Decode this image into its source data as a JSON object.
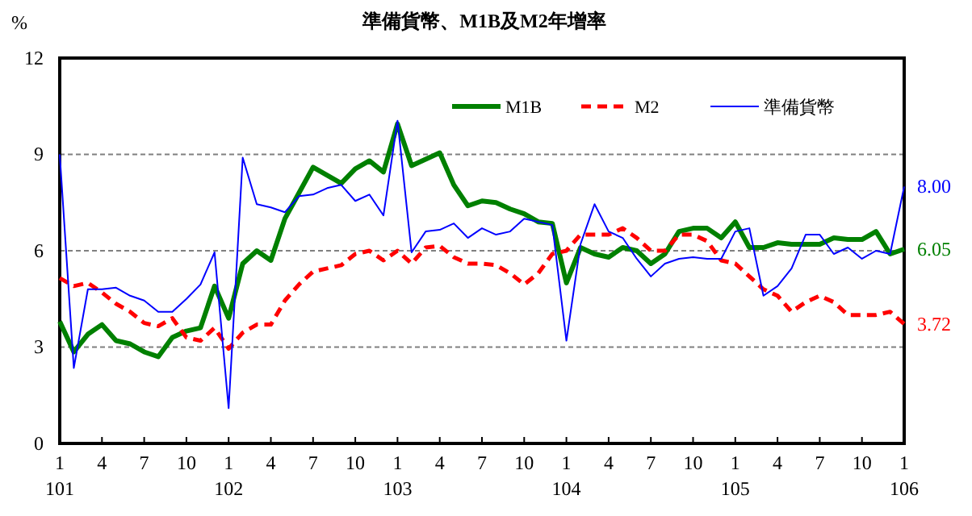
{
  "chart_data": {
    "type": "line",
    "title": "準備貨幣、M1B及M2年增率",
    "ylabel": "%",
    "categories": [
      "1\n101",
      null,
      null,
      "4",
      null,
      null,
      "7",
      null,
      null,
      "10",
      null,
      null,
      "1\n102",
      null,
      null,
      "4",
      null,
      null,
      "7",
      null,
      null,
      "10",
      null,
      null,
      "1\n103",
      null,
      null,
      "4",
      null,
      null,
      "7",
      null,
      null,
      "10",
      null,
      null,
      "1\n104",
      null,
      null,
      "4",
      null,
      null,
      "7",
      null,
      null,
      "10",
      null,
      null,
      "1\n105",
      null,
      null,
      "4",
      null,
      null,
      "7",
      null,
      null,
      "10",
      null,
      null,
      "1\n106"
    ],
    "ylim": [
      0,
      12
    ],
    "yticks": [
      0,
      3,
      6,
      9,
      12
    ],
    "grid": "y",
    "legend": "top right",
    "series": [
      {
        "name": "M1B",
        "color": "#008000",
        "line_style": "solid",
        "values": [
          3.8,
          2.85,
          3.4,
          3.7,
          3.2,
          3.1,
          2.85,
          2.7,
          3.3,
          3.5,
          3.6,
          4.9,
          3.9,
          5.6,
          6.0,
          5.7,
          7.0,
          7.8,
          8.6,
          8.35,
          8.1,
          8.55,
          8.8,
          8.45,
          9.95,
          8.65,
          8.85,
          9.05,
          8.05,
          7.4,
          7.55,
          7.5,
          7.3,
          7.15,
          6.9,
          6.85,
          5.0,
          6.1,
          5.9,
          5.8,
          6.1,
          6.0,
          5.6,
          5.9,
          6.6,
          6.7,
          6.7,
          6.4,
          6.9,
          6.1,
          6.1,
          6.25,
          6.2,
          6.2,
          6.2,
          6.4,
          6.35,
          6.35,
          6.6,
          5.9,
          6.05
        ],
        "value_labels": [
          null,
          null,
          null,
          null,
          null,
          null,
          null,
          null,
          null,
          null,
          null,
          null,
          null,
          null,
          null,
          null,
          null,
          null,
          null,
          null,
          null,
          null,
          null,
          null,
          null,
          null,
          null,
          null,
          null,
          null,
          null,
          null,
          null,
          null,
          null,
          null,
          null,
          null,
          null,
          null,
          null,
          null,
          null,
          null,
          null,
          null,
          null,
          null,
          null,
          null,
          null,
          null,
          null,
          null,
          null,
          null,
          null,
          null,
          null,
          null,
          "6.05"
        ]
      },
      {
        "name": "M2",
        "color": "#ff0000",
        "line_style": "dashed",
        "values": [
          5.15,
          4.9,
          5.0,
          4.7,
          4.35,
          4.1,
          3.75,
          3.65,
          3.9,
          3.3,
          3.2,
          3.6,
          2.95,
          3.45,
          3.7,
          3.7,
          4.45,
          4.95,
          5.35,
          5.45,
          5.55,
          5.9,
          6.0,
          5.7,
          6.0,
          5.6,
          6.1,
          6.15,
          5.8,
          5.6,
          5.6,
          5.55,
          5.3,
          4.95,
          5.3,
          5.9,
          6.0,
          6.5,
          6.5,
          6.5,
          6.7,
          6.4,
          6.0,
          6.0,
          6.5,
          6.5,
          6.3,
          5.7,
          5.6,
          5.2,
          4.8,
          4.6,
          4.1,
          4.4,
          4.6,
          4.4,
          4.0,
          4.0,
          4.0,
          4.1,
          3.72
        ],
        "value_labels": [
          null,
          null,
          null,
          null,
          null,
          null,
          null,
          null,
          null,
          null,
          null,
          null,
          null,
          null,
          null,
          null,
          null,
          null,
          null,
          null,
          null,
          null,
          null,
          null,
          null,
          null,
          null,
          null,
          null,
          null,
          null,
          null,
          null,
          null,
          null,
          null,
          null,
          null,
          null,
          null,
          null,
          null,
          null,
          null,
          null,
          null,
          null,
          null,
          null,
          null,
          null,
          null,
          null,
          null,
          null,
          null,
          null,
          null,
          null,
          null,
          "3.72"
        ]
      },
      {
        "name": "準備貨幣",
        "color": "#0000ff",
        "line_style": "solid",
        "values": [
          9.0,
          2.35,
          4.8,
          4.8,
          4.85,
          4.6,
          4.45,
          4.1,
          4.1,
          4.5,
          4.95,
          5.95,
          1.1,
          8.9,
          7.45,
          7.35,
          7.2,
          7.7,
          7.75,
          7.95,
          8.05,
          7.55,
          7.75,
          7.1,
          10.05,
          5.95,
          6.6,
          6.65,
          6.85,
          6.4,
          6.7,
          6.5,
          6.6,
          7.0,
          6.9,
          6.8,
          3.2,
          6.2,
          7.45,
          6.6,
          6.4,
          5.75,
          5.2,
          5.6,
          5.75,
          5.8,
          5.75,
          5.75,
          6.6,
          6.7,
          4.6,
          4.9,
          5.45,
          6.5,
          6.5,
          5.9,
          6.1,
          5.75,
          6.0,
          5.9,
          8.0
        ],
        "value_labels": [
          null,
          null,
          null,
          null,
          null,
          null,
          null,
          null,
          null,
          null,
          null,
          null,
          null,
          null,
          null,
          null,
          null,
          null,
          null,
          null,
          null,
          null,
          null,
          null,
          null,
          null,
          null,
          null,
          null,
          null,
          null,
          null,
          null,
          null,
          null,
          null,
          null,
          null,
          null,
          null,
          null,
          null,
          null,
          null,
          null,
          null,
          null,
          null,
          null,
          null,
          null,
          null,
          null,
          null,
          null,
          null,
          null,
          null,
          null,
          null,
          "8.00"
        ]
      }
    ]
  }
}
